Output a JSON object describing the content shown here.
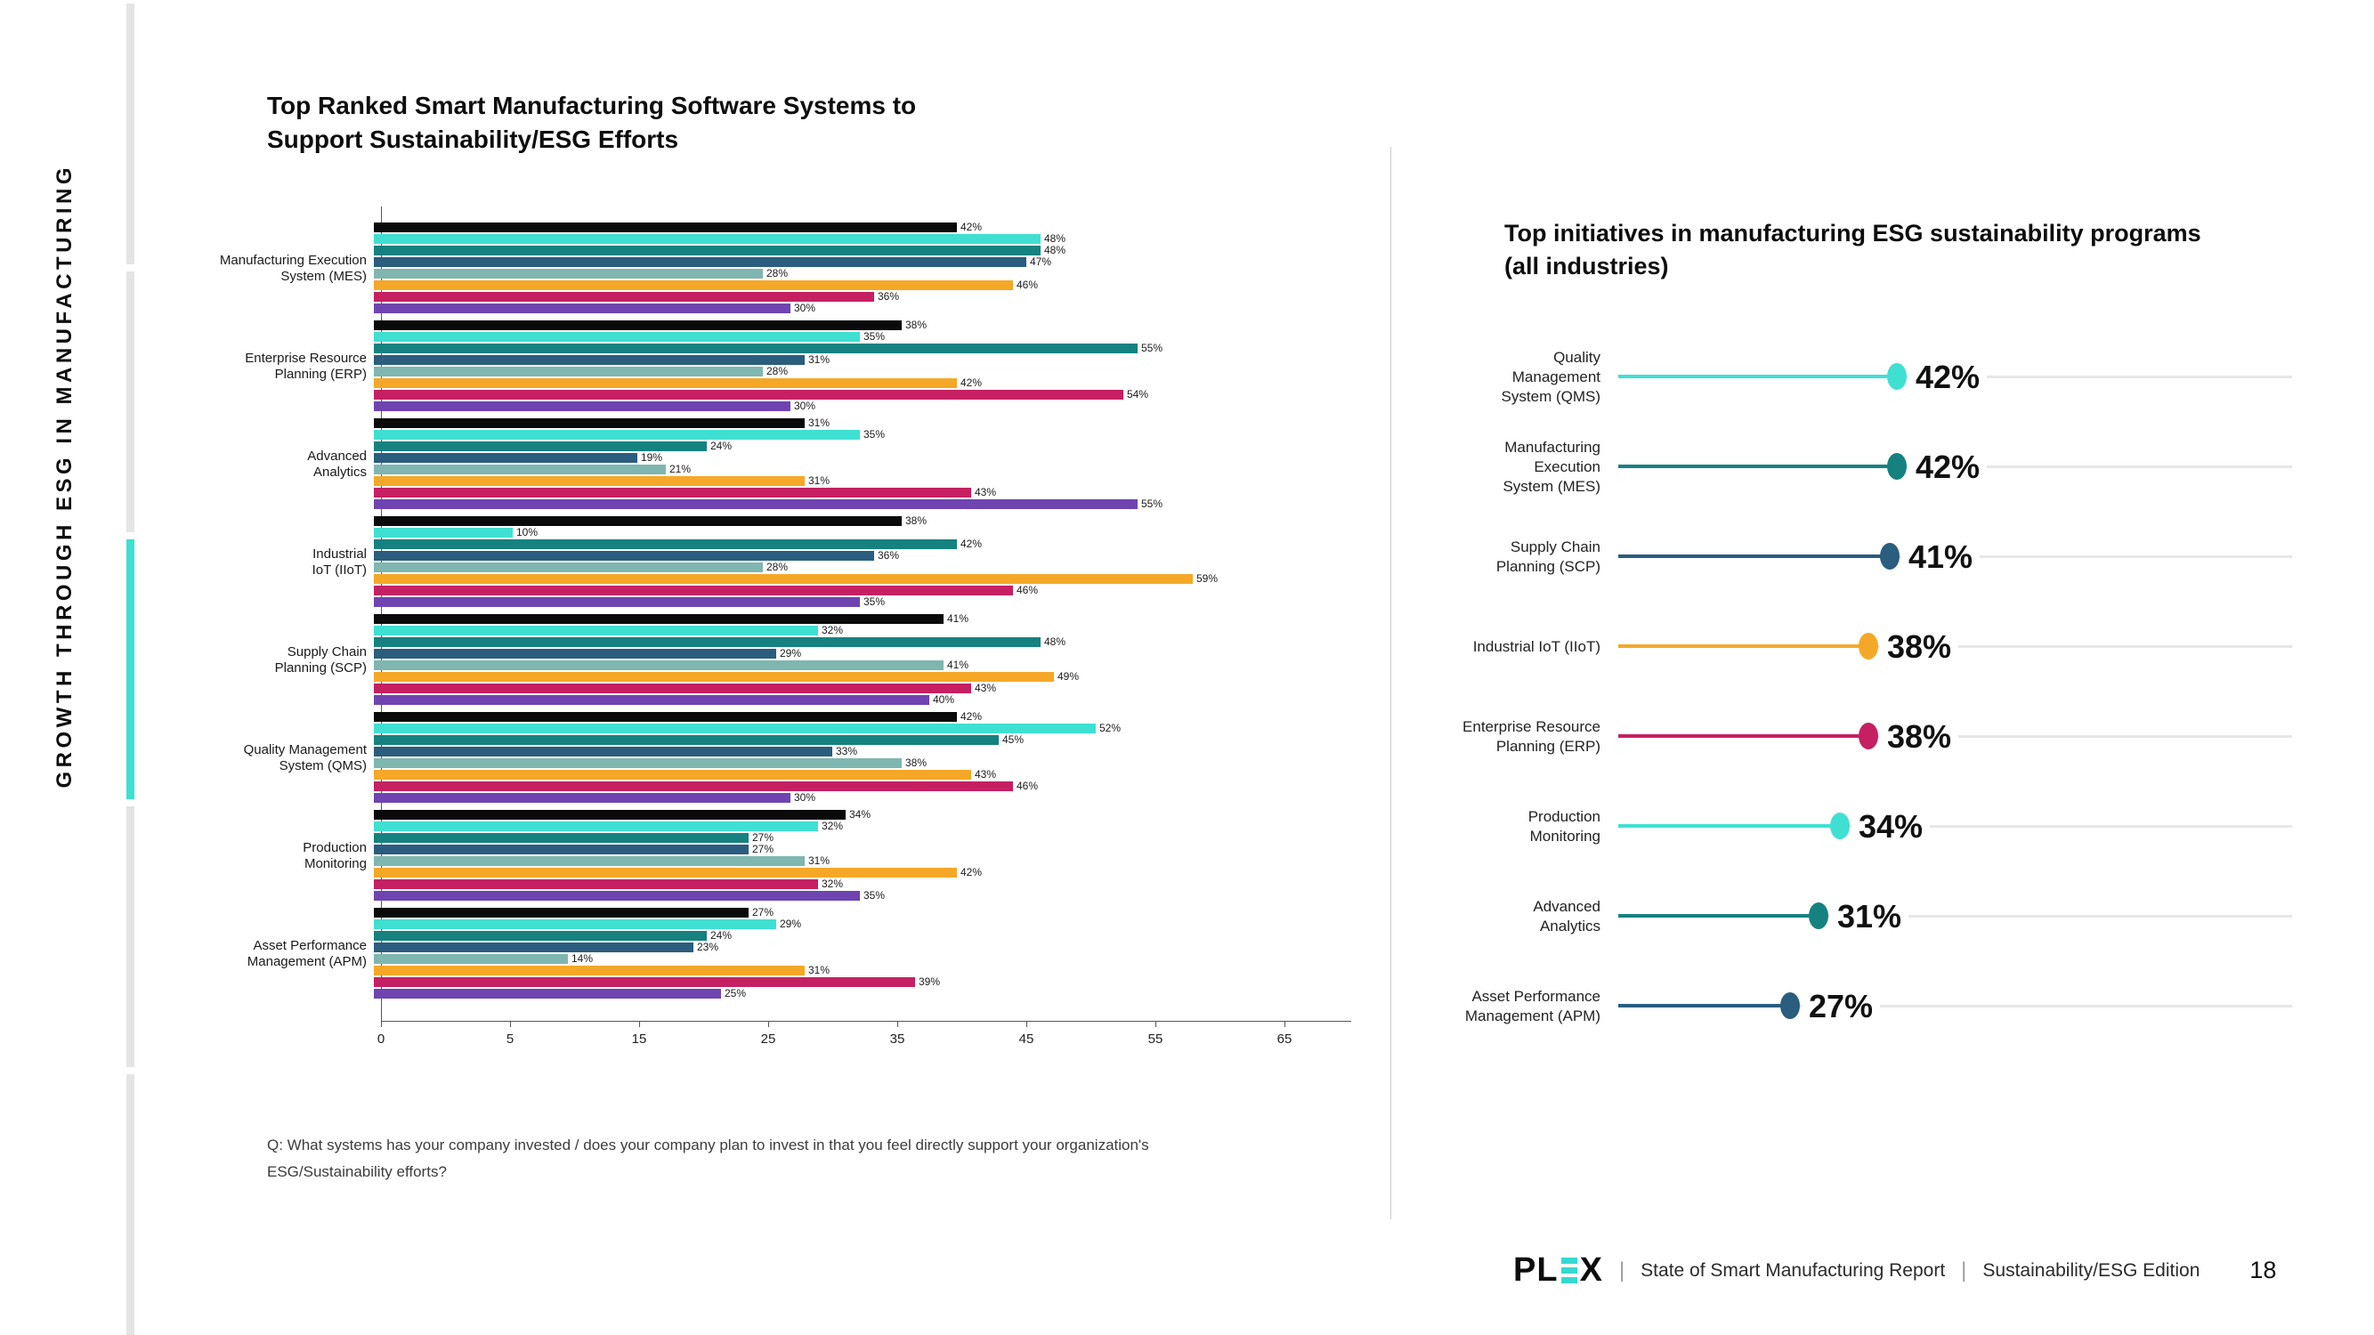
{
  "sidebar": {
    "vertical_text": "GROWTH THROUGH ESG IN MANUFACTURING"
  },
  "left_chart": {
    "title_line1": "Top Ranked Smart Manufacturing Software Systems to",
    "title_line2": "Support Sustainability/ESG Efforts",
    "question_line1": "Q: What systems has your company invested / does your company plan to invest in that you feel directly support your organization's",
    "question_line2": "ESG/Sustainability efforts?"
  },
  "right_chart": {
    "title_line1": "Top initiatives in manufacturing ESG sustainability programs",
    "title_line2": "(all industries)"
  },
  "footer": {
    "brand_p": "P",
    "brand_l": "L",
    "brand_x": "X",
    "separator": "|",
    "report_title": "State of Smart Manufacturing Report",
    "edition": "Sustainability/ESG Edition",
    "page_number": "18"
  },
  "colors": {
    "accent_cyan": "#3fe0d2",
    "rail_gray": "#e4e4e4",
    "track_gray": "#e7e7e7"
  },
  "chart_data": [
    {
      "type": "bar",
      "orientation": "horizontal",
      "title": "Top Ranked Smart Manufacturing Software Systems to Support Sustainability/ESG Efforts",
      "value_suffix": "%",
      "x_ticks": [
        "0",
        "5",
        "15",
        "25",
        "35",
        "45",
        "55",
        "65"
      ],
      "xlim": [
        0,
        69
      ],
      "grid": false,
      "legend": "none",
      "series_colors": [
        "#0a0a0a",
        "#3fe0d2",
        "#158280",
        "#2a5d7e",
        "#7fb6b0",
        "#f5a828",
        "#c52062",
        "#6f44b0"
      ],
      "categories": [
        {
          "label_lines": [
            "Manufacturing Execution",
            "System (MES)"
          ],
          "values": [
            42,
            48,
            48,
            47,
            28,
            46,
            36,
            30
          ]
        },
        {
          "label_lines": [
            "Enterprise Resource",
            "Planning (ERP)"
          ],
          "values": [
            38,
            35,
            55,
            31,
            28,
            42,
            54,
            30
          ]
        },
        {
          "label_lines": [
            "Advanced",
            "Analytics"
          ],
          "values": [
            31,
            35,
            24,
            19,
            21,
            31,
            43,
            55
          ]
        },
        {
          "label_lines": [
            "Industrial",
            "IoT (IIoT)"
          ],
          "values": [
            38,
            10,
            42,
            36,
            28,
            59,
            46,
            35
          ]
        },
        {
          "label_lines": [
            "Supply Chain",
            "Planning (SCP)"
          ],
          "values": [
            41,
            32,
            48,
            29,
            41,
            49,
            43,
            40
          ]
        },
        {
          "label_lines": [
            "Quality Management",
            "System (QMS)"
          ],
          "values": [
            42,
            52,
            45,
            33,
            38,
            43,
            46,
            30
          ]
        },
        {
          "label_lines": [
            "Production",
            "Monitoring"
          ],
          "values": [
            34,
            32,
            27,
            27,
            31,
            42,
            32,
            35
          ]
        },
        {
          "label_lines": [
            "Asset Performance",
            "Management (APM)"
          ],
          "values": [
            27,
            29,
            24,
            23,
            14,
            31,
            39,
            25
          ]
        }
      ]
    },
    {
      "type": "bar",
      "style": "lollipop",
      "orientation": "horizontal",
      "title": "Top initiatives in manufacturing ESG sustainability programs (all industries)",
      "value_suffix": "%",
      "xlim": [
        0,
        94
      ],
      "items": [
        {
          "label_lines": [
            "Quality",
            "Management",
            "System (QMS)"
          ],
          "value": 42,
          "color": "#3fe0d2"
        },
        {
          "label_lines": [
            "Manufacturing",
            "Execution",
            "System (MES)"
          ],
          "value": 42,
          "color": "#158280"
        },
        {
          "label_lines": [
            "Supply Chain",
            "Planning (SCP)"
          ],
          "value": 41,
          "color": "#2a5d7e"
        },
        {
          "label_lines": [
            "Industrial IoT (IIoT)"
          ],
          "value": 38,
          "color": "#f5a828"
        },
        {
          "label_lines": [
            "Enterprise Resource",
            "Planning (ERP)"
          ],
          "value": 38,
          "color": "#c52062"
        },
        {
          "label_lines": [
            "Production",
            "Monitoring"
          ],
          "value": 34,
          "color": "#3fe0d2"
        },
        {
          "label_lines": [
            "Advanced",
            "Analytics"
          ],
          "value": 31,
          "color": "#158280"
        },
        {
          "label_lines": [
            "Asset Performance",
            "Management (APM)"
          ],
          "value": 27,
          "color": "#2a5d7e"
        }
      ]
    }
  ]
}
